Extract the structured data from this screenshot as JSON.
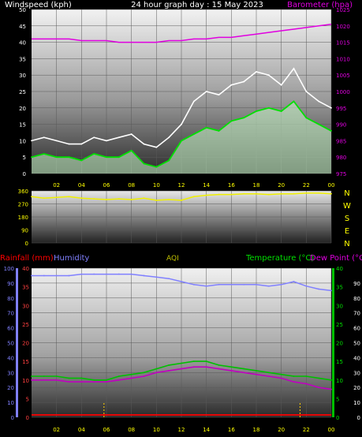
{
  "header": {
    "left_label": "Windspeed (kph)",
    "center_label": "24 hour graph day : 15 May 2023",
    "right_label": "Barometer (hpa)"
  },
  "colors": {
    "background": "#000000",
    "gust": "#ffffff",
    "wind_avg": "#00e000",
    "wind_fill": "#c8f7c8",
    "barometer": "#e000e0",
    "direction": "#f0f000",
    "humidity": "#8080ff",
    "temperature": "#00c000",
    "dew_point": "#c000c0",
    "rainfall": "#ff0000",
    "aqi": "#c0c000"
  },
  "wind_panel": {
    "chart_data": {
      "type": "line",
      "title": "24 hour graph day : 15 May 2023",
      "ylabel_left": "Windspeed (kph)",
      "ylabel_right": "Barometer (hpa)",
      "ylim_left": [
        0,
        50
      ],
      "ylim_right": [
        975,
        1025
      ],
      "yticks_left": [
        "0",
        "5",
        "10",
        "15",
        "20",
        "25",
        "30",
        "35",
        "40",
        "45",
        "50"
      ],
      "yticks_right": [
        "975",
        "980",
        "985",
        "990",
        "995",
        "1000",
        "1005",
        "1010",
        "1015",
        "1020",
        "1025"
      ],
      "xticks": [
        "02",
        "04",
        "06",
        "08",
        "10",
        "12",
        "14",
        "16",
        "18",
        "20",
        "22",
        "00"
      ],
      "x_hours": [
        0,
        1,
        2,
        3,
        4,
        5,
        6,
        7,
        8,
        9,
        10,
        11,
        12,
        13,
        14,
        15,
        16,
        17,
        18,
        19,
        20,
        21,
        22,
        23,
        24
      ],
      "series": [
        {
          "key": "gust",
          "values": [
            10,
            11,
            10,
            9,
            9,
            11,
            10,
            11,
            12,
            9,
            8,
            11,
            15,
            22,
            25,
            24,
            27,
            28,
            31,
            30,
            27,
            32,
            25,
            22,
            20
          ]
        },
        {
          "key": "wind_avg",
          "values": [
            5,
            6,
            5,
            5,
            4,
            6,
            5,
            5,
            7,
            3,
            2,
            4,
            10,
            12,
            14,
            13,
            16,
            17,
            19,
            20,
            19,
            22,
            17,
            15,
            13
          ]
        },
        {
          "key": "barometer",
          "values": [
            1016,
            1016,
            1016,
            1016,
            1015.5,
            1015.5,
            1015.5,
            1015,
            1015,
            1015,
            1015,
            1015.5,
            1015.5,
            1016,
            1016,
            1016.5,
            1016.5,
            1017,
            1017.5,
            1018,
            1018.5,
            1019,
            1019.5,
            1020,
            1020.5
          ]
        }
      ]
    }
  },
  "direction_panel": {
    "chart_data": {
      "type": "line",
      "ylim": [
        0,
        360
      ],
      "yticks": [
        "360",
        "270",
        "180",
        "90",
        "0"
      ],
      "compass_labels": [
        "N",
        "W",
        "S",
        "E",
        "N"
      ],
      "x_hours": [
        0,
        1,
        2,
        3,
        4,
        5,
        6,
        7,
        8,
        9,
        10,
        11,
        12,
        13,
        14,
        15,
        16,
        17,
        18,
        19,
        20,
        21,
        22,
        23,
        24
      ],
      "values": [
        320,
        310,
        315,
        320,
        310,
        305,
        300,
        305,
        300,
        310,
        295,
        300,
        295,
        320,
        330,
        335,
        335,
        340,
        340,
        335,
        340,
        340,
        345,
        345,
        340
      ]
    }
  },
  "temp_panel": {
    "labels": {
      "rainfall": "Rainfall (mm)",
      "humidity": "Humidity",
      "aqi": "AQI",
      "temperature": "Temperature (°C)",
      "dew_point": "Dew Point (°C)"
    },
    "chart_data": {
      "type": "line",
      "ylim_rain": [
        0,
        40
      ],
      "ylim_humidity": [
        0,
        100
      ],
      "ylim_temp": [
        0,
        40
      ],
      "ylim_aqi": [
        0,
        100
      ],
      "yticks_humidity": [
        "0",
        "10",
        "20",
        "30",
        "40",
        "50",
        "60",
        "70",
        "80",
        "90",
        "100"
      ],
      "yticks_rain": [
        "0",
        "5",
        "10",
        "15",
        "20",
        "25",
        "30",
        "35",
        "40"
      ],
      "yticks_temp": [
        "0",
        "5",
        "10",
        "15",
        "20",
        "25",
        "30",
        "35",
        "40"
      ],
      "yticks_aqi": [
        "0",
        "10",
        "20",
        "30",
        "40",
        "50",
        "60",
        "70",
        "80",
        "90"
      ],
      "xticks": [
        "02",
        "04",
        "06",
        "08",
        "10",
        "12",
        "14",
        "16",
        "18",
        "20",
        "22",
        "00"
      ],
      "x_hours": [
        0,
        1,
        2,
        3,
        4,
        5,
        6,
        7,
        8,
        9,
        10,
        11,
        12,
        13,
        14,
        15,
        16,
        17,
        18,
        19,
        20,
        21,
        22,
        23,
        24
      ],
      "series": [
        {
          "key": "humidity",
          "values": [
            95,
            95,
            95,
            95,
            96,
            96,
            96,
            96,
            96,
            95,
            94,
            93,
            91,
            89,
            88,
            89,
            89,
            89,
            89,
            88,
            89,
            91,
            88,
            86,
            85
          ]
        },
        {
          "key": "temperature",
          "values": [
            11,
            11,
            11,
            10.5,
            10.5,
            10,
            10,
            11,
            11.5,
            12,
            13,
            14,
            14.5,
            15,
            15,
            14,
            13.5,
            13,
            12.5,
            12,
            11.5,
            11,
            11,
            10.5,
            10
          ]
        },
        {
          "key": "dew_point",
          "values": [
            10,
            10,
            10,
            9.5,
            9.5,
            9.5,
            9.5,
            10,
            10.5,
            11,
            12,
            12.5,
            13,
            13.5,
            13.5,
            13,
            12.5,
            12,
            11.5,
            11,
            10.5,
            9.5,
            9,
            8,
            7.5
          ]
        },
        {
          "key": "rainfall",
          "values": [
            0.5,
            0.5,
            0.5,
            0.5,
            0.5,
            0.5,
            0.5,
            0.5,
            0.5,
            0.5,
            0.5,
            0.5,
            0.5,
            0.5,
            0.5,
            0.5,
            0.5,
            0.5,
            0.5,
            0.5,
            0.5,
            0.5,
            0.5,
            0.5,
            0.5
          ]
        }
      ],
      "rain_event_hours": [
        5.8,
        21.5
      ]
    }
  }
}
